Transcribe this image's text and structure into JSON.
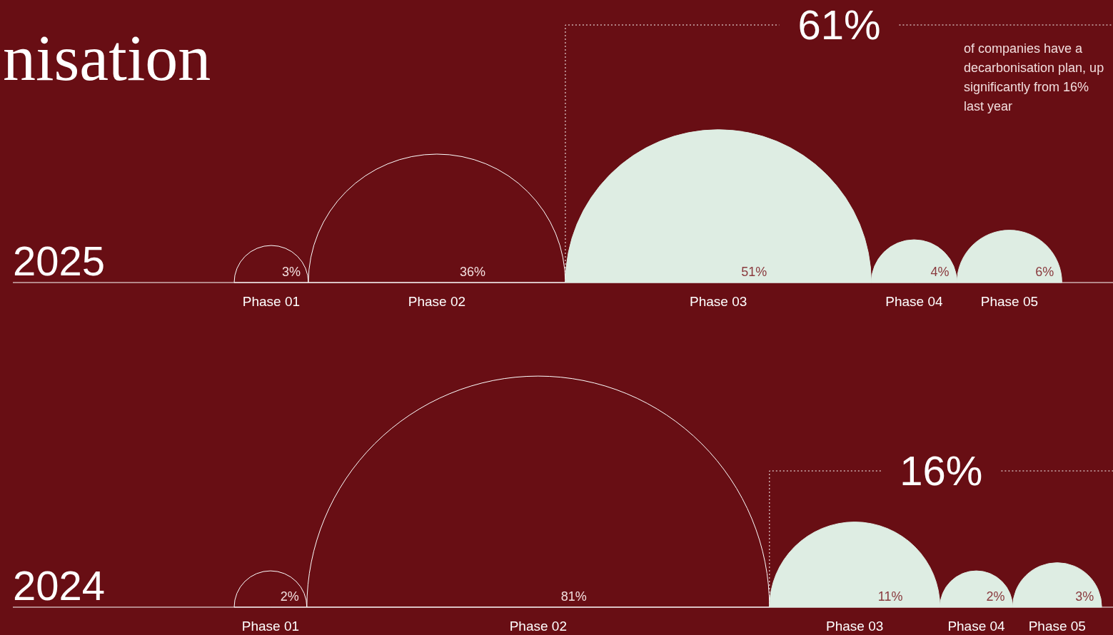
{
  "chart_data": [
    {
      "type": "other",
      "title": "nisation",
      "ylabel": "2025",
      "categories": [
        "Phase 01",
        "Phase 02",
        "Phase 03",
        "Phase 04",
        "Phase 05"
      ],
      "values": [
        3,
        36,
        51,
        4,
        6
      ],
      "value_labels": [
        "3%",
        "36%",
        "51%",
        "4%",
        "6%"
      ],
      "colors": [
        "#ffffff",
        "#ffffff",
        "#deede3",
        "#deede3",
        "#deede3"
      ],
      "annotations": [
        "61%",
        "of companies have a decarbonisation plan, up significantly from 16% last year"
      ]
    },
    {
      "type": "other",
      "ylabel": "2024",
      "categories": [
        "Phase 01",
        "Phase 02",
        "Phase 03",
        "Phase 04",
        "Phase 05"
      ],
      "values": [
        2,
        81,
        11,
        2,
        3
      ],
      "value_labels": [
        "2%",
        "81%",
        "11%",
        "2%",
        "3%"
      ],
      "colors": [
        "#ffffff",
        "#ffffff",
        "#deede3",
        "#deede3",
        "#deede3"
      ],
      "annotations": [
        "16%"
      ]
    }
  ]
}
